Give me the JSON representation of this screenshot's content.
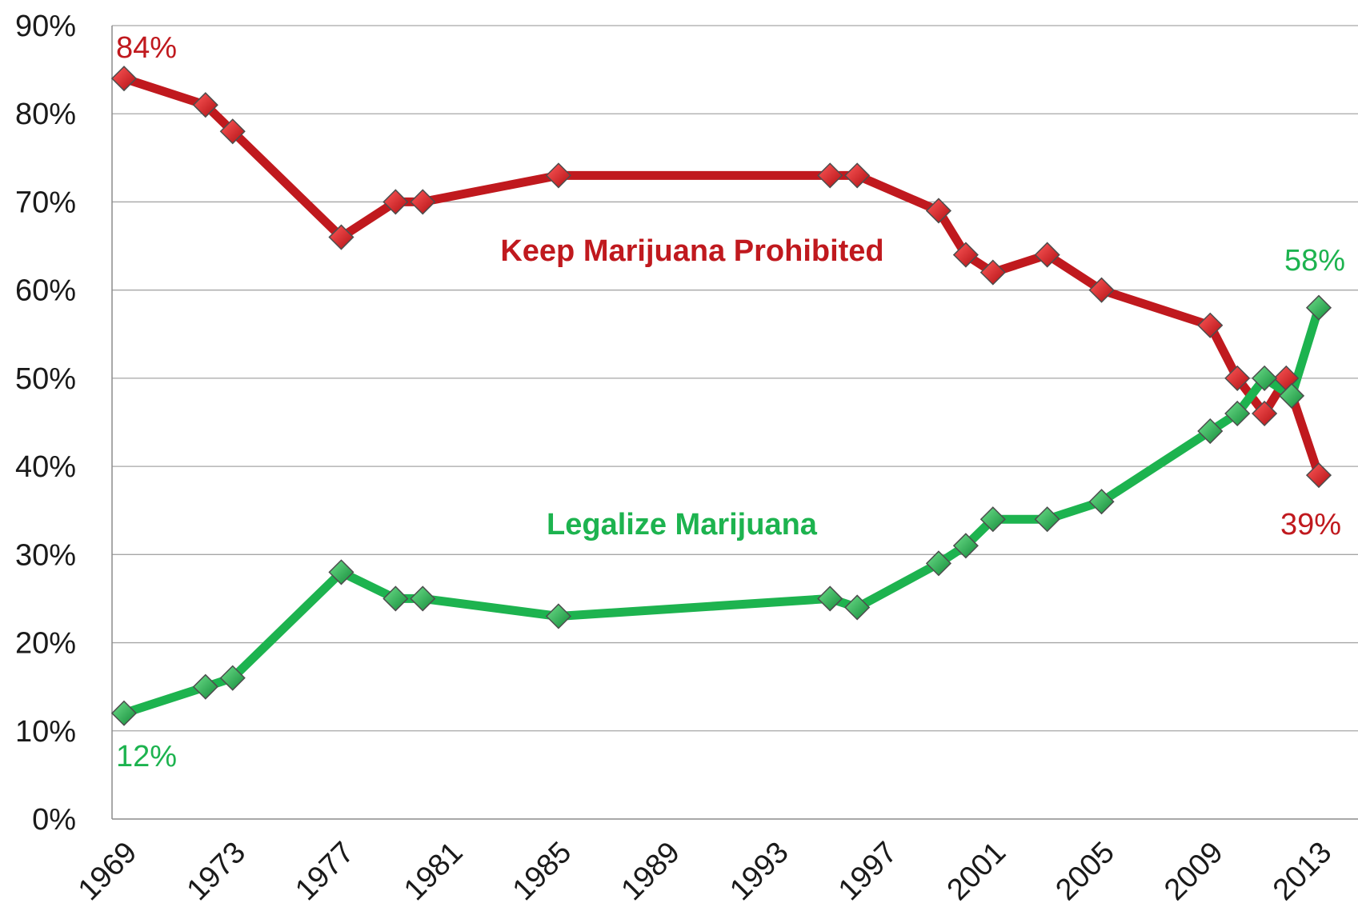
{
  "chart_data": {
    "type": "line",
    "title": "",
    "xlabel": "",
    "ylabel": "",
    "xlim": [
      1969,
      2013
    ],
    "ylim": [
      0,
      90
    ],
    "grid": true,
    "x_ticks": [
      "1969",
      "1973",
      "1977",
      "1981",
      "1985",
      "1989",
      "1993",
      "1997",
      "2001",
      "2005",
      "2009",
      "2013"
    ],
    "y_ticks": [
      "0%",
      "10%",
      "20%",
      "30%",
      "40%",
      "50%",
      "60%",
      "70%",
      "80%",
      "90%"
    ],
    "series": [
      {
        "name": "Keep Marijuana Prohibited",
        "color": "#c0191e",
        "marker_color": "#d62020",
        "points": [
          [
            1969,
            84
          ],
          [
            1972,
            81
          ],
          [
            1973,
            78
          ],
          [
            1977,
            66
          ],
          [
            1979,
            70
          ],
          [
            1980,
            70
          ],
          [
            1985,
            73
          ],
          [
            1995,
            73
          ],
          [
            1996,
            73
          ],
          [
            1999,
            69
          ],
          [
            2000,
            64
          ],
          [
            2001,
            62
          ],
          [
            2003,
            64
          ],
          [
            2005,
            60
          ],
          [
            2009,
            56
          ],
          [
            2010,
            50
          ],
          [
            2011,
            46
          ],
          [
            2011.8,
            50
          ],
          [
            2013,
            39
          ]
        ]
      },
      {
        "name": "Legalize Marijuana",
        "color": "#1db34f",
        "marker_color": "#22b14c",
        "points": [
          [
            1969,
            12
          ],
          [
            1972,
            15
          ],
          [
            1973,
            16
          ],
          [
            1977,
            28
          ],
          [
            1979,
            25
          ],
          [
            1980,
            25
          ],
          [
            1985,
            23
          ],
          [
            1995,
            25
          ],
          [
            1996,
            24
          ],
          [
            1999,
            29
          ],
          [
            2000,
            31
          ],
          [
            2001,
            34
          ],
          [
            2003,
            34
          ],
          [
            2005,
            36
          ],
          [
            2009,
            44
          ],
          [
            2010,
            46
          ],
          [
            2011,
            50
          ],
          [
            2012,
            48
          ],
          [
            2013,
            58
          ]
        ]
      }
    ],
    "annotations": {
      "prohibit_start": "84%",
      "prohibit_end": "39%",
      "legalize_start": "12%",
      "legalize_end": "58%"
    }
  }
}
